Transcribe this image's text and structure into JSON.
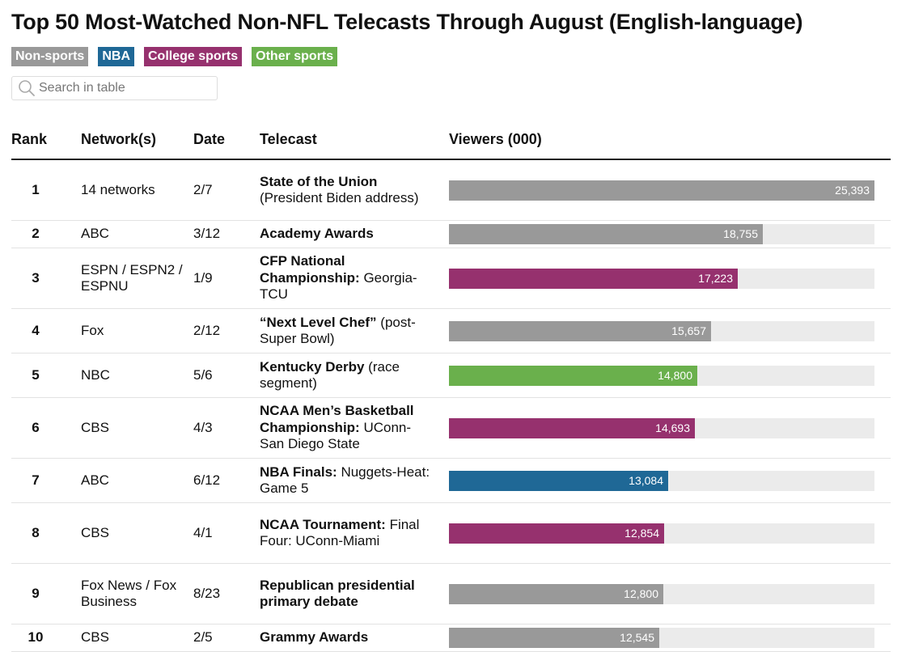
{
  "title": "Top 50 Most-Watched Non-NFL Telecasts Through August (English-language)",
  "legend": [
    {
      "label": "Non-sports",
      "color": "#999999"
    },
    {
      "label": "NBA",
      "color": "#1f6896"
    },
    {
      "label": "College sports",
      "color": "#96316e"
    },
    {
      "label": "Other sports",
      "color": "#6ab04c"
    }
  ],
  "search": {
    "placeholder": "Search in table"
  },
  "columns": {
    "rank": "Rank",
    "network": "Network(s)",
    "date": "Date",
    "telecast": "Telecast",
    "viewers": "Viewers (000)"
  },
  "chart_data": {
    "type": "bar",
    "xlim": [
      0,
      25393
    ],
    "rows": [
      {
        "rank": "1",
        "network": "14 networks",
        "date": "2/7",
        "telecast_bold": "State of the Union",
        "telecast_rest": "(President Biden address)",
        "value": 25393,
        "label": "25,393",
        "category": "Non-sports"
      },
      {
        "rank": "2",
        "network": "ABC",
        "date": "3/12",
        "telecast_bold": "Academy Awards",
        "telecast_rest": "",
        "value": 18755,
        "label": "18,755",
        "category": "Non-sports"
      },
      {
        "rank": "3",
        "network": "ESPN / ESPN2 / ESPNU",
        "date": "1/9",
        "telecast_bold": "CFP National Championship:",
        "telecast_rest": "Georgia-TCU",
        "value": 17223,
        "label": "17,223",
        "category": "College sports"
      },
      {
        "rank": "4",
        "network": "Fox",
        "date": "2/12",
        "telecast_bold": "“Next Level Chef”",
        "telecast_rest": "(post-Super Bowl)",
        "value": 15657,
        "label": "15,657",
        "category": "Non-sports"
      },
      {
        "rank": "5",
        "network": "NBC",
        "date": "5/6",
        "telecast_bold": "Kentucky Derby",
        "telecast_rest": "(race segment)",
        "value": 14800,
        "label": "14,800",
        "category": "Other sports"
      },
      {
        "rank": "6",
        "network": "CBS",
        "date": "4/3",
        "telecast_bold": "NCAA Men’s Basketball Championship:",
        "telecast_rest": "UConn-San Diego State",
        "value": 14693,
        "label": "14,693",
        "category": "College sports"
      },
      {
        "rank": "7",
        "network": "ABC",
        "date": "6/12",
        "telecast_bold": "NBA Finals:",
        "telecast_rest": "Nuggets-Heat: Game 5",
        "value": 13084,
        "label": "13,084",
        "category": "NBA"
      },
      {
        "rank": "8",
        "network": "CBS",
        "date": "4/1",
        "telecast_bold": "NCAA Tournament:",
        "telecast_rest": "Final Four: UConn-Miami",
        "value": 12854,
        "label": "12,854",
        "category": "College sports"
      },
      {
        "rank": "9",
        "network": "Fox News / Fox Business",
        "date": "8/23",
        "telecast_bold": "Republican presidential primary debate",
        "telecast_rest": "",
        "value": 12800,
        "label": "12,800",
        "category": "Non-sports"
      },
      {
        "rank": "10",
        "network": "CBS",
        "date": "2/5",
        "telecast_bold": "Grammy Awards",
        "telecast_rest": "",
        "value": 12545,
        "label": "12,545",
        "category": "Non-sports"
      }
    ]
  }
}
